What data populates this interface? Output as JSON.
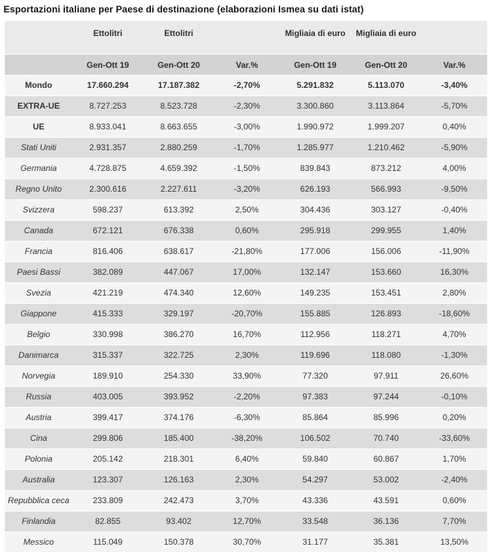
{
  "page": {
    "title": "Esportazioni italiane per Paese di destinazione (elaborazioni Ismea su dati istat)"
  },
  "table": {
    "unit_headers": [
      "",
      "Ettolitri",
      "Ettolitri",
      "",
      "Migliaia di euro",
      "Migliaia di euro",
      ""
    ],
    "period_headers": [
      "",
      "Gen-Ott 19",
      "Gen-Ott 20",
      "Var.%",
      "Gen-Ott 19",
      "Gen-Ott 20",
      "Var.%"
    ],
    "rows": [
      {
        "label": "Mondo",
        "emphasis": "total",
        "values": [
          "17.660.294",
          "17.187.382",
          "-2,70%",
          "5.291.832",
          "5.113.070",
          "-3,40%"
        ]
      },
      {
        "label": "EXTRA-UE",
        "emphasis": "group",
        "values": [
          "8.727.253",
          "8.523.728",
          "-2,30%",
          "3.300.860",
          "3.113.864",
          "-5,70%"
        ]
      },
      {
        "label": "UE",
        "emphasis": "group",
        "values": [
          "8.933.041",
          "8.663.655",
          "-3,00%",
          "1.990.972",
          "1.999.207",
          "0,40%"
        ]
      },
      {
        "label": "Stati Uniti",
        "emphasis": "country",
        "values": [
          "2.931.357",
          "2.880.259",
          "-1,70%",
          "1.285.977",
          "1.210.462",
          "-5,90%"
        ]
      },
      {
        "label": "Germania",
        "emphasis": "country",
        "values": [
          "4.728.875",
          "4.659.392",
          "-1,50%",
          "839.843",
          "873.212",
          "4,00%"
        ]
      },
      {
        "label": "Regno Unito",
        "emphasis": "country",
        "values": [
          "2.300.616",
          "2.227.611",
          "-3,20%",
          "626.193",
          "566.993",
          "-9,50%"
        ]
      },
      {
        "label": "Svizzera",
        "emphasis": "country",
        "values": [
          "598.237",
          "613.392",
          "2,50%",
          "304.436",
          "303.127",
          "-0,40%"
        ]
      },
      {
        "label": "Canada",
        "emphasis": "country",
        "values": [
          "672.121",
          "676.338",
          "0,60%",
          "295.918",
          "299.955",
          "1,40%"
        ]
      },
      {
        "label": "Francia",
        "emphasis": "country",
        "values": [
          "816.406",
          "638.617",
          "-21,80%",
          "177.006",
          "156.006",
          "-11,90%"
        ]
      },
      {
        "label": "Paesi Bassi",
        "emphasis": "country",
        "values": [
          "382.089",
          "447.067",
          "17,00%",
          "132.147",
          "153.660",
          "16,30%"
        ]
      },
      {
        "label": "Svezia",
        "emphasis": "country",
        "values": [
          "421.219",
          "474.340",
          "12,60%",
          "149.235",
          "153.451",
          "2,80%"
        ]
      },
      {
        "label": "Giappone",
        "emphasis": "country",
        "values": [
          "415.333",
          "329.197",
          "-20,70%",
          "155.885",
          "126.893",
          "-18,60%"
        ]
      },
      {
        "label": "Belgio",
        "emphasis": "country",
        "values": [
          "330.998",
          "386.270",
          "16,70%",
          "112.956",
          "118.271",
          "4,70%"
        ]
      },
      {
        "label": "Danimarca",
        "emphasis": "country",
        "values": [
          "315.337",
          "322.725",
          "2,30%",
          "119.696",
          "118.080",
          "-1,30%"
        ]
      },
      {
        "label": "Norvegia",
        "emphasis": "country",
        "values": [
          "189.910",
          "254.330",
          "33,90%",
          "77.320",
          "97.911",
          "26,60%"
        ]
      },
      {
        "label": "Russia",
        "emphasis": "country",
        "values": [
          "403.005",
          "393.952",
          "-2,20%",
          "97.383",
          "97.244",
          "-0,10%"
        ]
      },
      {
        "label": "Austria",
        "emphasis": "country",
        "values": [
          "399.417",
          "374.176",
          "-6,30%",
          "85.864",
          "85.996",
          "0,20%"
        ]
      },
      {
        "label": "Cina",
        "emphasis": "country",
        "values": [
          "299.806",
          "185.400",
          "-38,20%",
          "106.502",
          "70.740",
          "-33,60%"
        ]
      },
      {
        "label": "Polonia",
        "emphasis": "country",
        "values": [
          "205.142",
          "218.301",
          "6,40%",
          "59.840",
          "60.867",
          "1,70%"
        ]
      },
      {
        "label": "Australia",
        "emphasis": "country",
        "values": [
          "123.307",
          "126.163",
          "2,30%",
          "54.297",
          "53.002",
          "-2,40%"
        ]
      },
      {
        "label": "Repubblica ceca",
        "emphasis": "country",
        "values": [
          "233.809",
          "242.473",
          "3,70%",
          "43.336",
          "43.591",
          "0,60%"
        ]
      },
      {
        "label": "Finlandia",
        "emphasis": "country",
        "values": [
          "82.855",
          "93.402",
          "12,70%",
          "33.548",
          "36.136",
          "7,70%"
        ]
      },
      {
        "label": "Messico",
        "emphasis": "country",
        "values": [
          "115.049",
          "150.378",
          "30,70%",
          "31.177",
          "35.381",
          "13,50%"
        ]
      }
    ]
  },
  "colors": {
    "row_light": "#f4f4f4",
    "row_dark": "#dddddd",
    "header_units_bg": "#eaeaea",
    "header_periods_bg": "#d3d3d3",
    "text": "#333333",
    "title_text": "#161616"
  },
  "chart_data": {
    "type": "table",
    "title": "Esportazioni italiane per Paese di destinazione (elaborazioni Ismea su dati istat)",
    "columns": [
      "Ettolitri Gen-Ott 19",
      "Ettolitri Gen-Ott 20",
      "Var.% ettolitri",
      "Migliaia di euro Gen-Ott 19",
      "Migliaia di euro Gen-Ott 20",
      "Var.% euro"
    ],
    "rows": [
      {
        "label": "Mondo",
        "hl_2019": 17660294,
        "hl_2020": 17187382,
        "var_hl_pct": -2.7,
        "keuro_2019": 5291832,
        "keuro_2020": 5113070,
        "var_euro_pct": -3.4
      },
      {
        "label": "EXTRA-UE",
        "hl_2019": 8727253,
        "hl_2020": 8523728,
        "var_hl_pct": -2.3,
        "keuro_2019": 3300860,
        "keuro_2020": 3113864,
        "var_euro_pct": -5.7
      },
      {
        "label": "UE",
        "hl_2019": 8933041,
        "hl_2020": 8663655,
        "var_hl_pct": -3.0,
        "keuro_2019": 1990972,
        "keuro_2020": 1999207,
        "var_euro_pct": 0.4
      },
      {
        "label": "Stati Uniti",
        "hl_2019": 2931357,
        "hl_2020": 2880259,
        "var_hl_pct": -1.7,
        "keuro_2019": 1285977,
        "keuro_2020": 1210462,
        "var_euro_pct": -5.9
      },
      {
        "label": "Germania",
        "hl_2019": 4728875,
        "hl_2020": 4659392,
        "var_hl_pct": -1.5,
        "keuro_2019": 839843,
        "keuro_2020": 873212,
        "var_euro_pct": 4.0
      },
      {
        "label": "Regno Unito",
        "hl_2019": 2300616,
        "hl_2020": 2227611,
        "var_hl_pct": -3.2,
        "keuro_2019": 626193,
        "keuro_2020": 566993,
        "var_euro_pct": -9.5
      },
      {
        "label": "Svizzera",
        "hl_2019": 598237,
        "hl_2020": 613392,
        "var_hl_pct": 2.5,
        "keuro_2019": 304436,
        "keuro_2020": 303127,
        "var_euro_pct": -0.4
      },
      {
        "label": "Canada",
        "hl_2019": 672121,
        "hl_2020": 676338,
        "var_hl_pct": 0.6,
        "keuro_2019": 295918,
        "keuro_2020": 299955,
        "var_euro_pct": 1.4
      },
      {
        "label": "Francia",
        "hl_2019": 816406,
        "hl_2020": 638617,
        "var_hl_pct": -21.8,
        "keuro_2019": 177006,
        "keuro_2020": 156006,
        "var_euro_pct": -11.9
      },
      {
        "label": "Paesi Bassi",
        "hl_2019": 382089,
        "hl_2020": 447067,
        "var_hl_pct": 17.0,
        "keuro_2019": 132147,
        "keuro_2020": 153660,
        "var_euro_pct": 16.3
      },
      {
        "label": "Svezia",
        "hl_2019": 421219,
        "hl_2020": 474340,
        "var_hl_pct": 12.6,
        "keuro_2019": 149235,
        "keuro_2020": 153451,
        "var_euro_pct": 2.8
      },
      {
        "label": "Giappone",
        "hl_2019": 415333,
        "hl_2020": 329197,
        "var_hl_pct": -20.7,
        "keuro_2019": 155885,
        "keuro_2020": 126893,
        "var_euro_pct": -18.6
      },
      {
        "label": "Belgio",
        "hl_2019": 330998,
        "hl_2020": 386270,
        "var_hl_pct": 16.7,
        "keuro_2019": 112956,
        "keuro_2020": 118271,
        "var_euro_pct": 4.7
      },
      {
        "label": "Danimarca",
        "hl_2019": 315337,
        "hl_2020": 322725,
        "var_hl_pct": 2.3,
        "keuro_2019": 119696,
        "keuro_2020": 118080,
        "var_euro_pct": -1.3
      },
      {
        "label": "Norvegia",
        "hl_2019": 189910,
        "hl_2020": 254330,
        "var_hl_pct": 33.9,
        "keuro_2019": 77320,
        "keuro_2020": 97911,
        "var_euro_pct": 26.6
      },
      {
        "label": "Russia",
        "hl_2019": 403005,
        "hl_2020": 393952,
        "var_hl_pct": -2.2,
        "keuro_2019": 97383,
        "keuro_2020": 97244,
        "var_euro_pct": -0.1
      },
      {
        "label": "Austria",
        "hl_2019": 399417,
        "hl_2020": 374176,
        "var_hl_pct": -6.3,
        "keuro_2019": 85864,
        "keuro_2020": 85996,
        "var_euro_pct": 0.2
      },
      {
        "label": "Cina",
        "hl_2019": 299806,
        "hl_2020": 185400,
        "var_hl_pct": -38.2,
        "keuro_2019": 106502,
        "keuro_2020": 70740,
        "var_euro_pct": -33.6
      },
      {
        "label": "Polonia",
        "hl_2019": 205142,
        "hl_2020": 218301,
        "var_hl_pct": 6.4,
        "keuro_2019": 59840,
        "keuro_2020": 60867,
        "var_euro_pct": 1.7
      },
      {
        "label": "Australia",
        "hl_2019": 123307,
        "hl_2020": 126163,
        "var_hl_pct": 2.3,
        "keuro_2019": 54297,
        "keuro_2020": 53002,
        "var_euro_pct": -2.4
      },
      {
        "label": "Repubblica ceca",
        "hl_2019": 233809,
        "hl_2020": 242473,
        "var_hl_pct": 3.7,
        "keuro_2019": 43336,
        "keuro_2020": 43591,
        "var_euro_pct": 0.6
      },
      {
        "label": "Finlandia",
        "hl_2019": 82855,
        "hl_2020": 93402,
        "var_hl_pct": 12.7,
        "keuro_2019": 33548,
        "keuro_2020": 36136,
        "var_euro_pct": 7.7
      },
      {
        "label": "Messico",
        "hl_2019": 115049,
        "hl_2020": 150378,
        "var_hl_pct": 30.7,
        "keuro_2019": 31177,
        "keuro_2020": 35381,
        "var_euro_pct": 13.5
      }
    ]
  }
}
